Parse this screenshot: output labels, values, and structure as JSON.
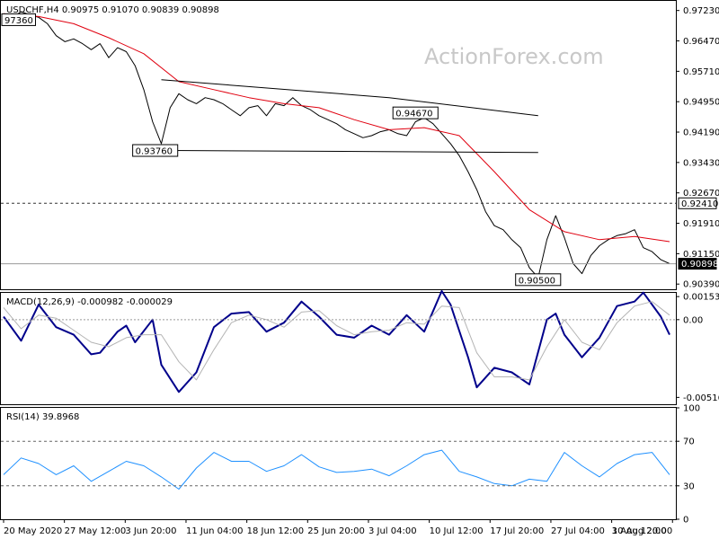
{
  "watermark": "ActionForex.com",
  "chart_data": [
    {
      "type": "line",
      "title": "USDCHF,H4  0.90975 0.91070 0.90839 0.90898",
      "ylim": [
        0.9026,
        0.9747
      ],
      "y_ticks": [
        "0.97230",
        "0.96470",
        "0.95710",
        "0.94950",
        "0.94190",
        "0.93430",
        "0.92670",
        "0.91910",
        "0.91150",
        "0.90390"
      ],
      "x_ticks": [
        "20 May 2020",
        "27 May 12:00",
        "3 Jun 20:00",
        "11 Jun 04:00",
        "18 Jun 12:00",
        "25 Jun 20:00",
        "3 Jul 04:00",
        "10 Jul 12:00",
        "17 Jul 20:00",
        "27 Jul 04:00",
        "3 Aug 12:00",
        "10 Aug 20:00"
      ],
      "series": [
        {
          "name": "",
          "color": "#000000",
          "x": [
            0,
            1,
            2,
            3,
            4,
            5,
            6,
            7,
            8,
            9,
            10,
            11,
            12,
            13,
            14,
            15,
            16,
            17,
            18,
            19,
            20,
            21,
            22,
            23,
            24,
            25,
            26,
            27,
            28,
            29,
            30,
            31,
            32,
            33,
            34,
            35,
            36,
            37,
            38,
            39,
            40,
            41,
            42,
            43,
            44,
            45,
            46,
            47,
            48,
            49,
            50,
            51,
            52,
            53,
            54,
            55,
            56,
            57,
            58,
            59,
            60,
            61,
            62,
            63,
            64,
            65,
            66,
            67,
            68,
            69,
            70,
            71,
            72,
            73,
            74,
            75,
            76
          ],
          "values": [
            0.9685,
            0.9705,
            0.972,
            0.9712,
            0.9706,
            0.969,
            0.966,
            0.9645,
            0.9652,
            0.964,
            0.9625,
            0.964,
            0.9605,
            0.963,
            0.962,
            0.9585,
            0.9525,
            0.9445,
            0.939,
            0.948,
            0.9515,
            0.95,
            0.949,
            0.9505,
            0.95,
            0.949,
            0.9475,
            0.946,
            0.948,
            0.9485,
            0.946,
            0.949,
            0.9485,
            0.9505,
            0.9485,
            0.9475,
            0.946,
            0.945,
            0.944,
            0.9425,
            0.9415,
            0.9405,
            0.941,
            0.942,
            0.9425,
            0.9415,
            0.941,
            0.9445,
            0.9455,
            0.944,
            0.9415,
            0.939,
            0.936,
            0.932,
            0.9275,
            0.922,
            0.9185,
            0.9175,
            0.915,
            0.913,
            0.908,
            0.9055,
            0.915,
            0.921,
            0.9155,
            0.909,
            0.9065,
            0.911,
            0.9135,
            0.915,
            0.916,
            0.9165,
            0.9175,
            0.913,
            0.912,
            0.91,
            0.909
          ]
        },
        {
          "name": "",
          "color": "#e0000f",
          "x": [
            0,
            4,
            8,
            12,
            16,
            20,
            24,
            28,
            32,
            36,
            40,
            44,
            48,
            52,
            56,
            60,
            64,
            68,
            72,
            76
          ],
          "values": [
            0.9715,
            0.9708,
            0.969,
            0.9655,
            0.9615,
            0.9545,
            0.9525,
            0.9505,
            0.949,
            0.948,
            0.945,
            0.9425,
            0.943,
            0.941,
            0.932,
            0.9225,
            0.917,
            0.915,
            0.9158,
            0.9145
          ]
        }
      ],
      "annotations": {
        "dashed_level": "0.92410",
        "price_tag": "0.90898",
        "labels": [
          "97360",
          "0.93760",
          "0.94670",
          "0.90500"
        ],
        "trendline_upper": [
          [
            9.0,
            0.955
          ],
          [
            22.0,
            0.9505
          ],
          [
            30.5,
            0.946
          ]
        ],
        "trendline_lower": [
          [
            9.5,
            0.9373
          ],
          [
            30.5,
            0.9368
          ]
        ]
      }
    },
    {
      "type": "line",
      "title": "MACD(12,26,9) -0.000982 -0.000029",
      "ylim": [
        -0.00562,
        0.00178
      ],
      "y_ticks": [
        "0.001532",
        "0.00",
        "-0.005164"
      ],
      "series": [
        {
          "name": "",
          "color": "#00008b",
          "x": [
            0,
            2,
            4,
            6,
            8,
            10,
            11,
            13,
            14,
            15,
            17,
            18,
            20,
            22,
            24,
            26,
            28,
            30,
            32,
            34,
            36,
            38,
            40,
            42,
            44,
            46,
            48,
            50,
            51,
            53,
            54,
            56,
            58,
            60,
            62,
            63,
            64,
            66,
            68,
            70,
            72,
            73,
            75,
            76
          ],
          "values": [
            0.0002,
            -0.0014,
            0.001,
            -0.0005,
            -0.001,
            -0.0023,
            -0.0022,
            -0.0008,
            -0.0004,
            -0.0015,
            0.0,
            -0.003,
            -0.0048,
            -0.0035,
            -0.0005,
            0.0004,
            0.0005,
            -0.0008,
            -0.0002,
            0.0012,
            0.0002,
            -0.001,
            -0.0012,
            -0.0004,
            -0.001,
            0.0003,
            -0.0008,
            0.0019,
            0.001,
            -0.0025,
            -0.0045,
            -0.0032,
            -0.0035,
            -0.0043,
            0.0,
            0.0004,
            -0.001,
            -0.0025,
            -0.0012,
            0.0009,
            0.0012,
            0.0018,
            0.0002,
            -0.001
          ]
        },
        {
          "name": "",
          "color": "#b4b4b4",
          "x": [
            0,
            2,
            4,
            6,
            8,
            10,
            12,
            14,
            16,
            18,
            20,
            22,
            24,
            26,
            28,
            30,
            32,
            34,
            36,
            38,
            40,
            42,
            44,
            46,
            48,
            50,
            52,
            54,
            56,
            58,
            60,
            62,
            64,
            66,
            68,
            70,
            72,
            74,
            76
          ],
          "values": [
            0.0008,
            -0.0006,
            0.0003,
            0.0001,
            -0.0007,
            -0.0015,
            -0.0018,
            -0.0012,
            -0.001,
            -0.001,
            -0.0028,
            -0.004,
            -0.002,
            -0.0002,
            0.0003,
            0.0,
            -0.0005,
            0.0005,
            0.0006,
            -0.0004,
            -0.001,
            -0.0008,
            -0.0007,
            -0.0002,
            -0.0003,
            0.0009,
            0.0008,
            -0.0022,
            -0.0038,
            -0.0038,
            -0.004,
            -0.0018,
            0.0,
            -0.0015,
            -0.002,
            -0.0002,
            0.0009,
            0.0012,
            0.0003
          ]
        }
      ]
    },
    {
      "type": "line",
      "title": "RSI(14) 39.8968",
      "ylim": [
        0,
        100
      ],
      "y_ticks": [
        "100",
        "70",
        "30",
        "0"
      ],
      "series": [
        {
          "name": "",
          "color": "#1e90ff",
          "x": [
            0,
            2,
            4,
            6,
            8,
            10,
            12,
            14,
            16,
            18,
            20,
            22,
            24,
            26,
            28,
            30,
            32,
            34,
            36,
            38,
            40,
            42,
            44,
            46,
            48,
            50,
            52,
            54,
            56,
            58,
            60,
            62,
            64,
            66,
            68,
            70,
            72,
            74,
            76
          ],
          "values": [
            40,
            55,
            50,
            40,
            48,
            34,
            43,
            52,
            48,
            38,
            27,
            46,
            60,
            52,
            52,
            43,
            48,
            58,
            47,
            42,
            43,
            45,
            39,
            48,
            58,
            62,
            43,
            38,
            32,
            30,
            36,
            34,
            60,
            48,
            38,
            50,
            58,
            60,
            40
          ]
        }
      ]
    }
  ]
}
